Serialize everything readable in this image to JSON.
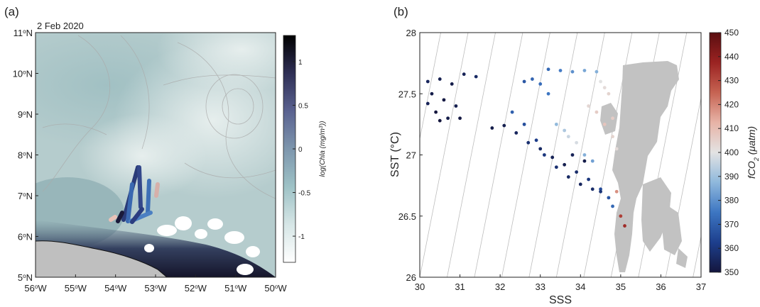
{
  "chart_data": [
    {
      "type": "heatmap",
      "panel_label": "(a)",
      "date_label": "2 Feb 2020",
      "x_ticks": [
        {
          "deg": "56",
          "sup": "o",
          "dir": "W"
        },
        {
          "deg": "55",
          "sup": "o",
          "dir": "W"
        },
        {
          "deg": "54",
          "sup": "o",
          "dir": "W"
        },
        {
          "deg": "53",
          "sup": "o",
          "dir": "W"
        },
        {
          "deg": "52",
          "sup": "o",
          "dir": "W"
        },
        {
          "deg": "51",
          "sup": "o",
          "dir": "W"
        },
        {
          "deg": "50",
          "sup": "o",
          "dir": "W"
        }
      ],
      "y_ticks": [
        {
          "deg": "11",
          "sup": "o",
          "dir": "N"
        },
        {
          "deg": "10",
          "sup": "o",
          "dir": "N"
        },
        {
          "deg": "9",
          "sup": "o",
          "dir": "N"
        },
        {
          "deg": "8",
          "sup": "o",
          "dir": "N"
        },
        {
          "deg": "7",
          "sup": "o",
          "dir": "N"
        },
        {
          "deg": "6",
          "sup": "o",
          "dir": "N"
        },
        {
          "deg": "5",
          "sup": "o",
          "dir": "N"
        }
      ],
      "xlim": [
        -56,
        -50
      ],
      "ylim": [
        5,
        11
      ],
      "colorbar": {
        "label": "log(Chla (mg/m",
        "label_sup": "3",
        "label_end": "))",
        "range": [
          -1.3,
          1.3
        ],
        "ticks": [
          "1",
          "0.5",
          "0",
          "-0.5",
          "-1"
        ],
        "tick_values": [
          1,
          0.5,
          0,
          -0.5,
          -1
        ],
        "colors": [
          "#ffffff",
          "#d6e6e6",
          "#9ec2c6",
          "#7d96ad",
          "#5a6290",
          "#2f2f55",
          "#000000"
        ]
      },
      "colors": {
        "land": "#bfbfbf",
        "contour": "#aaaaaa",
        "coast": "#1c1c2e"
      }
    },
    {
      "type": "scatter",
      "panel_label": "(b)",
      "xlabel": "SSS",
      "ylabel": "SST (°C)",
      "xlim": [
        30,
        37
      ],
      "ylim": [
        26,
        28
      ],
      "x_ticks": [
        "30",
        "31",
        "32",
        "33",
        "34",
        "35",
        "36",
        "37"
      ],
      "y_ticks": [
        "26",
        "26.5",
        "27",
        "27.5",
        "28"
      ],
      "colorbar": {
        "label_prefix": "fCO",
        "label_sub": "2",
        "label_unit": " (μatm)",
        "range": [
          350,
          450
        ],
        "ticks": [
          "450",
          "440",
          "430",
          "420",
          "410",
          "400",
          "390",
          "380",
          "370",
          "360",
          "350"
        ],
        "colors": [
          "#14163d",
          "#1d3f8d",
          "#3d76c2",
          "#8fb8dc",
          "#e3e3e3",
          "#e7b3a6",
          "#c66352",
          "#9b2322",
          "#5a0e10"
        ]
      },
      "background_color": "#c2c2c2",
      "series": [
        {
          "x": [
            30.2,
            30.5,
            30.8,
            31.1,
            31.4,
            30.3,
            30.6,
            30.9,
            30.4,
            30.7,
            31.0,
            30.2,
            30.5
          ],
          "y": [
            27.6,
            27.62,
            27.58,
            27.66,
            27.64,
            27.5,
            27.45,
            27.4,
            27.35,
            27.3,
            27.3,
            27.42,
            27.28
          ],
          "v": [
            355,
            353,
            352,
            354,
            356,
            352,
            351,
            353,
            350,
            352,
            351,
            354,
            350
          ]
        },
        {
          "x": [
            31.8,
            32.1,
            32.4,
            32.7,
            33.0,
            33.3,
            33.6,
            33.9,
            34.2,
            34.5,
            34.7,
            34.8
          ],
          "y": [
            27.22,
            27.24,
            27.18,
            27.1,
            27.05,
            26.98,
            26.92,
            26.86,
            26.8,
            26.72,
            26.65,
            26.58
          ],
          "v": [
            352,
            353,
            355,
            358,
            356,
            354,
            353,
            357,
            360,
            365,
            368,
            372
          ]
        },
        {
          "x": [
            32.3,
            32.6,
            32.9,
            33.1,
            33.4,
            33.7,
            34.0,
            34.3,
            34.5,
            34.1,
            33.8
          ],
          "y": [
            27.35,
            27.25,
            27.12,
            27.0,
            26.9,
            26.82,
            26.76,
            26.72,
            26.7,
            26.95,
            27.0
          ],
          "v": [
            370,
            366,
            362,
            360,
            358,
            356,
            355,
            357,
            359,
            352,
            354
          ]
        },
        {
          "x": [
            33.2,
            33.5,
            33.8,
            34.1,
            34.4
          ],
          "y": [
            27.7,
            27.69,
            27.68,
            27.69,
            27.68
          ],
          "v": [
            372,
            376,
            380,
            384,
            386
          ]
        },
        {
          "x": [
            32.6,
            32.8,
            33.0,
            33.2
          ],
          "y": [
            27.6,
            27.62,
            27.58,
            27.5
          ],
          "v": [
            368,
            371,
            373,
            375
          ]
        },
        {
          "x": [
            33.4,
            33.6,
            33.7,
            33.9,
            34.1,
            34.3
          ],
          "y": [
            27.25,
            27.2,
            27.15,
            27.1,
            27.0,
            26.95
          ],
          "v": [
            388,
            392,
            396,
            398,
            386,
            383
          ]
        },
        {
          "x": [
            34.2,
            34.4,
            34.6,
            34.8,
            34.9
          ],
          "y": [
            27.4,
            27.35,
            27.25,
            27.15,
            27.05
          ],
          "v": [
            403,
            406,
            408,
            404,
            402
          ]
        },
        {
          "x": [
            34.9,
            35.0,
            35.1
          ],
          "y": [
            26.7,
            26.5,
            26.42
          ],
          "v": [
            418,
            432,
            436
          ]
        },
        {
          "x": [
            34.5,
            34.6,
            34.7,
            34.8
          ],
          "y": [
            27.6,
            27.55,
            27.5,
            27.3
          ],
          "v": [
            400,
            402,
            404,
            406
          ]
        }
      ]
    }
  ]
}
